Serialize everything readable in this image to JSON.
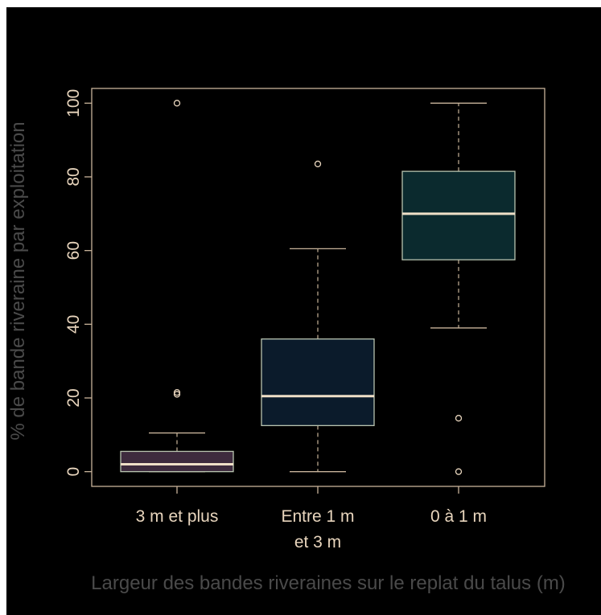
{
  "chart_data": {
    "type": "box",
    "title": "",
    "xlabel": "Largeur des bandes riveraines sur le replat du talus (m)",
    "ylabel": "% de bande riveraine par exploitation",
    "ylim": [
      -4,
      104
    ],
    "yticks": [
      0,
      20,
      40,
      60,
      80,
      100
    ],
    "categories": [
      {
        "line1": "3 m et plus",
        "line2": ""
      },
      {
        "line1": "Entre 1 m",
        "line2": "et 3 m"
      },
      {
        "line1": "0 à 1 m",
        "line2": ""
      }
    ],
    "boxes": [
      {
        "whisker_low": 0,
        "q1": 0,
        "median": 2,
        "q3": 5.5,
        "whisker_high": 10.5,
        "outliers": [
          21,
          21.5,
          100
        ],
        "fill": "#3e2b3e"
      },
      {
        "whisker_low": 0,
        "q1": 12.5,
        "median": 20.5,
        "q3": 36,
        "whisker_high": 60.5,
        "outliers": [
          83.5
        ],
        "fill": "#0b1b2b"
      },
      {
        "whisker_low": 39,
        "q1": 57.5,
        "median": 70,
        "q3": 81.5,
        "whisker_high": 100,
        "outliers": [
          0,
          14.5
        ],
        "fill": "#0b2a2e"
      }
    ],
    "colors": {
      "background": "#000000",
      "axis": "#c8b39a",
      "text": "#e8d5bd",
      "axis_title": "#4a4a4a",
      "median": "#f0e0c8",
      "box_border": "#b8c4b0"
    }
  }
}
